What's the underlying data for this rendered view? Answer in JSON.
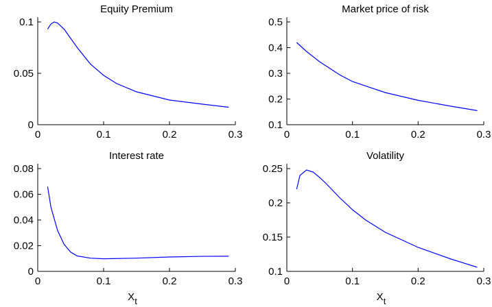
{
  "chart_data": [
    {
      "type": "line",
      "title": "Equity Premium",
      "x": [
        0.015,
        0.02,
        0.025,
        0.03,
        0.04,
        0.05,
        0.06,
        0.08,
        0.1,
        0.12,
        0.15,
        0.2,
        0.25,
        0.29
      ],
      "series": [
        {
          "color": "#0000ff",
          "values": [
            0.093,
            0.098,
            0.1,
            0.099,
            0.093,
            0.084,
            0.075,
            0.059,
            0.048,
            0.04,
            0.032,
            0.024,
            0.02,
            0.017
          ]
        }
      ],
      "xlim": [
        0,
        0.3
      ],
      "xticks": [
        0,
        0.1,
        0.2,
        0.3
      ],
      "ylim": [
        0,
        0.1
      ],
      "yticks": [
        0,
        0.05,
        0.1
      ]
    },
    {
      "type": "line",
      "title": "Market price of risk",
      "x": [
        0.015,
        0.03,
        0.05,
        0.08,
        0.1,
        0.15,
        0.2,
        0.25,
        0.29
      ],
      "series": [
        {
          "color": "#0000ff",
          "values": [
            0.42,
            0.385,
            0.345,
            0.295,
            0.268,
            0.225,
            0.195,
            0.172,
            0.155
          ]
        }
      ],
      "xlim": [
        0,
        0.3
      ],
      "xticks": [
        0,
        0.1,
        0.2,
        0.3
      ],
      "ylim": [
        0.1,
        0.5
      ],
      "yticks": [
        0.1,
        0.2,
        0.3,
        0.4,
        0.5
      ]
    },
    {
      "type": "line",
      "title": "Interest rate",
      "xlabel": "X",
      "xlabel_subscript": "t",
      "x": [
        0.015,
        0.02,
        0.03,
        0.04,
        0.05,
        0.06,
        0.08,
        0.1,
        0.15,
        0.2,
        0.25,
        0.29
      ],
      "series": [
        {
          "color": "#0000ff",
          "values": [
            0.066,
            0.05,
            0.032,
            0.021,
            0.015,
            0.012,
            0.0103,
            0.0098,
            0.0103,
            0.0112,
            0.0117,
            0.0118
          ]
        }
      ],
      "xlim": [
        0,
        0.3
      ],
      "xticks": [
        0,
        0.1,
        0.2,
        0.3
      ],
      "ylim": [
        0,
        0.08
      ],
      "yticks": [
        0,
        0.02,
        0.04,
        0.06,
        0.08
      ]
    },
    {
      "type": "line",
      "title": "Volatility",
      "xlabel": "X",
      "xlabel_subscript": "t",
      "x": [
        0.015,
        0.02,
        0.03,
        0.04,
        0.05,
        0.06,
        0.08,
        0.1,
        0.12,
        0.15,
        0.2,
        0.25,
        0.29
      ],
      "series": [
        {
          "color": "#0000ff",
          "values": [
            0.22,
            0.24,
            0.248,
            0.245,
            0.237,
            0.228,
            0.208,
            0.19,
            0.175,
            0.157,
            0.135,
            0.118,
            0.106
          ]
        }
      ],
      "xlim": [
        0,
        0.3
      ],
      "xticks": [
        0,
        0.1,
        0.2,
        0.3
      ],
      "ylim": [
        0.1,
        0.25
      ],
      "yticks": [
        0.1,
        0.15,
        0.2,
        0.25
      ]
    }
  ]
}
